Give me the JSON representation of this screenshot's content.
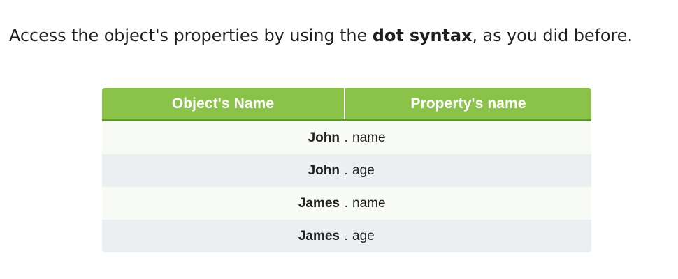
{
  "intro": {
    "before": "Access the object's properties by using the ",
    "emphasis": "dot syntax",
    "after": ", as you did before."
  },
  "table": {
    "headers": [
      "Object's Name",
      "Property's name"
    ],
    "separator": ".",
    "rows": [
      {
        "object": "John",
        "property": "name"
      },
      {
        "object": "John",
        "property": "age"
      },
      {
        "object": "James",
        "property": "name"
      },
      {
        "object": "James",
        "property": "age"
      }
    ]
  },
  "colors": {
    "header_bg": "#8bc34a",
    "header_border": "#5a9b2c",
    "row_odd": "#f8fbf5",
    "row_even": "#eceff1"
  }
}
